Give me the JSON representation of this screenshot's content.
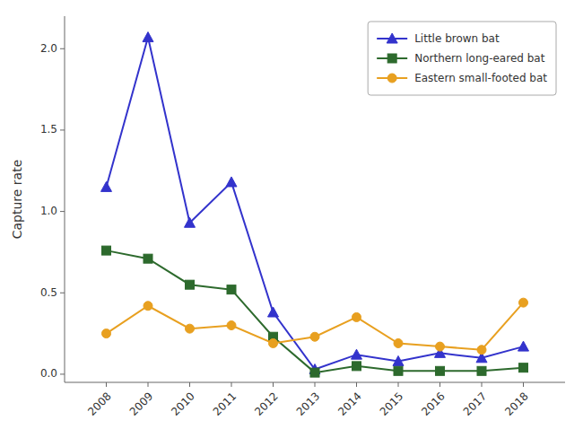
{
  "chart_data": {
    "type": "line",
    "y_label": "Capture rate",
    "x": [
      2008,
      2009,
      2010,
      2011,
      2012,
      2013,
      2014,
      2015,
      2016,
      2017,
      2018
    ],
    "xlim": [
      2007,
      2019
    ],
    "xticks": [
      2008,
      2009,
      2010,
      2011,
      2012,
      2013,
      2014,
      2015,
      2016,
      2017,
      2018
    ],
    "ylim": [
      -0.05,
      2.2
    ],
    "yticks": [
      {
        "value": 0,
        "label": "0.0"
      },
      {
        "value": 0.5,
        "label": "0.5"
      },
      {
        "value": 1,
        "label": "1.0"
      },
      {
        "value": 1.5,
        "label": "1.5"
      },
      {
        "value": 2,
        "label": "2.0"
      }
    ],
    "grid": false,
    "legend": "upper right",
    "series": [
      {
        "name": "Little brown bat",
        "color": "#3333CC",
        "marker": "triangle",
        "values": [
          1.15,
          2.07,
          0.93,
          1.18,
          0.38,
          0.03,
          0.12,
          0.08,
          0.13,
          0.1,
          0.17
        ]
      },
      {
        "name": "Northern long-eared bat",
        "color": "#2D6A2D",
        "marker": "square",
        "values": [
          0.76,
          0.71,
          0.55,
          0.52,
          0.23,
          0.01,
          0.05,
          0.02,
          0.02,
          0.02,
          0.04
        ]
      },
      {
        "name": "Eastern small-footed bat",
        "color": "#E8A020",
        "marker": "circle",
        "values": [
          0.25,
          0.42,
          0.28,
          0.3,
          0.19,
          0.23,
          0.35,
          0.19,
          0.17,
          0.15,
          0.44
        ]
      }
    ]
  }
}
